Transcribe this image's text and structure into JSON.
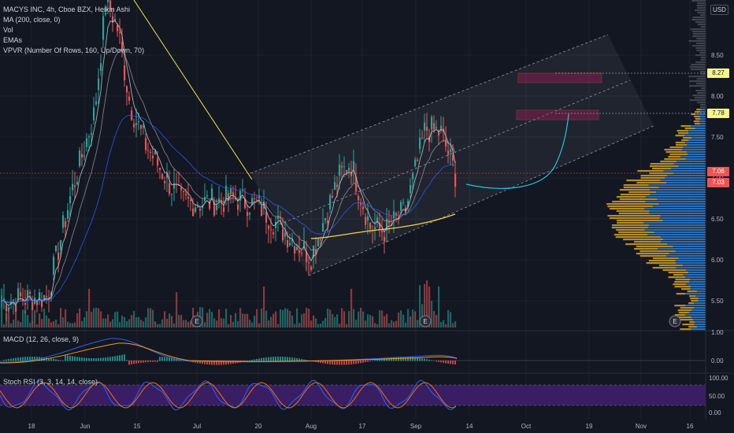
{
  "legend": {
    "title": "MACYS INC, 4h, Cboe BZX, Heikin Ashi",
    "ma": "MA (200, close, 0)",
    "vol": "Vol",
    "emas": "EMAs",
    "vpvr": "VPVR (Number Of Rows, 160, Up/Down, 70)",
    "macd": "MACD (12, 26, close, 9)",
    "stoch": "Stoch RSI (3, 3, 14, 14, close)"
  },
  "currency": "USD",
  "colors": {
    "background": "#131722",
    "up": "#26a69a",
    "down": "#ef5350",
    "ma200": "#f2d34b",
    "trendline": "#e8e84a",
    "arc": "#26c6da",
    "vpvr_up": "#2f7fd1",
    "vpvr_down": "#d1a12a",
    "stoch_band": "#3e1f6b",
    "zone": "#c2185b"
  },
  "price_tags": {
    "t827": "8.27",
    "t778": "7.78",
    "t706": "7.06",
    "t703": "7.03"
  },
  "chart_data": {
    "type": "candlestick",
    "symbol": "MACYS INC",
    "interval": "4h",
    "y_axis": [
      "5.50",
      "6.00",
      "6.50",
      "7.00",
      "7.50",
      "8.00",
      "8.50"
    ],
    "y_ticks": [
      5.5,
      6.0,
      6.5,
      7.0,
      7.5,
      8.0,
      8.5
    ],
    "macd_axis": [
      "1.00",
      "0.00"
    ],
    "macd_ticks": [
      1.0,
      0.0
    ],
    "stoch_axis": [
      "100.00",
      "50.00",
      "0.00"
    ],
    "stoch_ticks": [
      100,
      50,
      0
    ],
    "x_axis": [
      "18",
      "Jun",
      "15",
      "Jul",
      "20",
      "Aug",
      "17",
      "Sep",
      "14",
      "Oct",
      "19",
      "Nov",
      "16"
    ],
    "last_price": 7.03,
    "prev_price": 7.06,
    "target_zones": [
      8.27,
      7.78
    ],
    "earnings_markers": [
      "E",
      "E",
      "E"
    ]
  }
}
